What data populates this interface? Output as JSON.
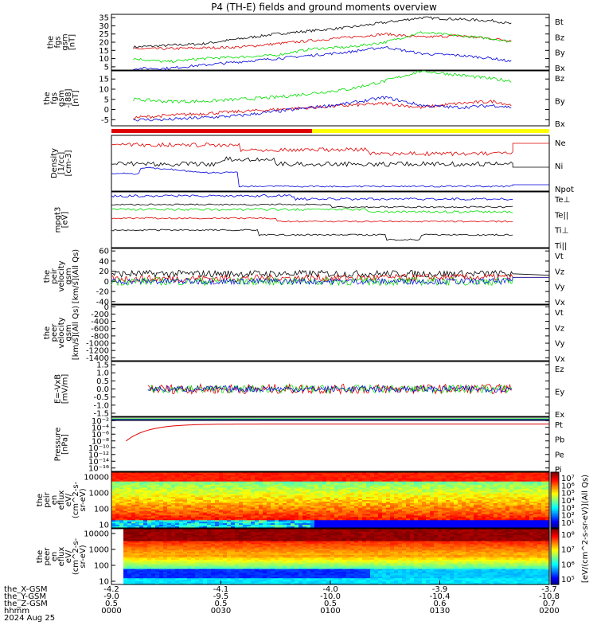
{
  "title": "P4 (TH-E) fields and ground moments overview",
  "colors": {
    "black": "#000000",
    "red": "#e00000",
    "green": "#00dd00",
    "blue": "#0000dd",
    "yellow": "#ffff00"
  },
  "panels": [
    {
      "ylabel": [
        "the",
        "fgs",
        "gsm",
        "[nT]"
      ],
      "ticks": [
        "35",
        "30",
        "25",
        "20",
        "15",
        "10",
        "5"
      ],
      "tickvals": [
        35,
        30,
        25,
        20,
        15,
        10,
        5
      ],
      "ylim": [
        3,
        37
      ],
      "legend": [
        {
          "t": "Bt",
          "c": "black"
        },
        {
          "t": "Bz",
          "c": "red"
        },
        {
          "t": "By",
          "c": "green"
        },
        {
          "t": "Bx",
          "c": "blue"
        }
      ]
    },
    {
      "ylabel": [
        "the",
        "fgs",
        "gsm",
        "-[88]",
        "[nT]"
      ],
      "ticks": [
        "15",
        "10",
        "5",
        "0",
        "-5"
      ],
      "tickvals": [
        15,
        10,
        5,
        0,
        -5
      ],
      "ylim": [
        -8,
        19
      ],
      "legend": [
        {
          "t": "Bz",
          "c": "red"
        },
        {
          "t": "By",
          "c": "green"
        },
        {
          "t": "Bx",
          "c": "blue"
        }
      ]
    },
    {
      "ylabel": [
        "Density",
        "[1/cc]",
        "[cm-3]"
      ],
      "ticks": [],
      "tickvals": [],
      "ylim": [
        0,
        1
      ],
      "legend": [
        {
          "t": "Ne",
          "c": "red"
        },
        {
          "t": "Ni",
          "c": "black"
        },
        {
          "t": "Npot",
          "c": "blue"
        }
      ]
    },
    {
      "ylabel": [
        "mpgt3",
        "[eV]"
      ],
      "ticks": [],
      "tickvals": [],
      "ylim": [
        0,
        1
      ],
      "legend": [
        {
          "t": "Te⊥",
          "c": "red"
        },
        {
          "t": "Te||",
          "c": "black"
        },
        {
          "t": "Ti⊥",
          "c": "red"
        },
        {
          "t": "Ti||",
          "c": "green"
        }
      ]
    },
    {
      "ylabel": [
        "the",
        "peir",
        "velocity",
        "gsm",
        "[km/s](All Qs)"
      ],
      "ticks": [
        "60",
        "40",
        "20",
        "0",
        "-20",
        "-40"
      ],
      "tickvals": [
        60,
        40,
        20,
        0,
        -20,
        -40
      ],
      "ylim": [
        -45,
        65
      ],
      "legend": [
        {
          "t": "Vt",
          "c": "black"
        },
        {
          "t": "Vz",
          "c": "red"
        },
        {
          "t": "Vy",
          "c": "green"
        },
        {
          "t": "Vx",
          "c": "blue"
        }
      ]
    },
    {
      "ylabel": [
        "the",
        "peer",
        "velocity",
        "gsm",
        "[km/s](All Qs)"
      ],
      "ticks": [
        "0",
        "-200",
        "-400",
        "-600",
        "-800",
        "-1000",
        "-1200",
        "-1400"
      ],
      "tickvals": [
        0,
        -200,
        -400,
        -600,
        -800,
        -1000,
        -1200,
        -1400
      ],
      "ylim": [
        -1480,
        50
      ],
      "legend": [
        {
          "t": "Vt",
          "c": "black"
        },
        {
          "t": "Vz",
          "c": "red"
        },
        {
          "t": "Vy",
          "c": "green"
        },
        {
          "t": "Vx",
          "c": "blue"
        }
      ]
    },
    {
      "ylabel": [
        "E=-VxB",
        "[mV/m]"
      ],
      "ticks": [
        "1.5",
        "1.0",
        "0.5",
        "0.0",
        "-0.5",
        "-1.0",
        "-1.5"
      ],
      "tickvals": [
        1.5,
        1.0,
        0.5,
        0.0,
        -0.5,
        -1.0,
        -1.5
      ],
      "ylim": [
        -1.7,
        1.7
      ],
      "legend": [
        {
          "t": "Ez",
          "c": "red"
        },
        {
          "t": "Ey",
          "c": "green"
        },
        {
          "t": "Ex",
          "c": "blue"
        }
      ]
    },
    {
      "ylabel": [
        "Pressure",
        "[nPa]"
      ],
      "ticks": [
        "10⁻²",
        "10⁻⁴",
        "10⁻⁶",
        "10⁻⁸",
        "10⁻¹⁰",
        "10⁻¹²",
        "10⁻¹⁴",
        "10⁻¹⁶"
      ],
      "tickvals": [
        -2,
        -4,
        -6,
        -8,
        -10,
        -12,
        -14,
        -16
      ],
      "ylim": [
        -17,
        -1
      ],
      "legend": [
        {
          "t": "Pt",
          "c": "black"
        },
        {
          "t": "Pb",
          "c": "red"
        },
        {
          "t": "Pe",
          "c": "green"
        },
        {
          "t": "Pi",
          "c": "blue"
        }
      ]
    },
    {
      "ylabel": [
        "the",
        "peir",
        "en",
        "eflux",
        "eV/",
        "(cm^2-s-",
        "sr-eV)"
      ],
      "ticks": [
        "10000",
        "1000",
        "100",
        "10"
      ],
      "tickvals": [
        4,
        3,
        2,
        1
      ],
      "ylim": [
        0.8,
        4.3
      ],
      "legend": []
    },
    {
      "ylabel": [
        "the",
        "peer",
        "en",
        "eflux",
        "eV/",
        "(cm^2-s-",
        "sr-eV)"
      ],
      "ticks": [
        "10000",
        "1000",
        "100",
        "10"
      ],
      "tickvals": [
        4,
        3,
        2,
        1
      ],
      "ylim": [
        0.8,
        4.3
      ],
      "legend": []
    }
  ],
  "colorbar1": {
    "ticks": [
      "10⁷",
      "10⁶",
      "10⁵",
      "10⁴",
      "10³",
      "10²",
      "10¹"
    ],
    "label": "[eV/(cm^2-s-sr-eV)](All Qs)"
  },
  "colorbar2": {
    "ticks": [
      "10⁸",
      "10⁷",
      "10⁶",
      "10⁵"
    ],
    "label": "[eV/(cm^2-s-sr-eV)](All Qs)"
  },
  "xaxis": {
    "row_labels": [
      "the_X-GSM",
      "the_Y-GSM",
      "the_Z-GSM",
      "hhmm",
      "2024 Aug 25"
    ],
    "ticks": [
      {
        "x": "-4.2",
        "y": "-9.0",
        "z": "0.5",
        "t": "0000"
      },
      {
        "x": "-4.1",
        "y": "-9.5",
        "z": "0.5",
        "t": "0030"
      },
      {
        "x": "-4.0",
        "y": "-10.0",
        "z": "0.5",
        "t": "0100"
      },
      {
        "x": "-3.9",
        "y": "-10.4",
        "z": "0.6",
        "t": "0130"
      },
      {
        "x": "-3.7",
        "y": "-10.8",
        "z": "0.7",
        "t": "0200"
      }
    ]
  },
  "chart_data": {
    "type": "line",
    "x_unit": "minutes since 0000 UT",
    "xlim": [
      0,
      120
    ],
    "series": [
      {
        "panel": 0,
        "name": "Bt",
        "color": "black",
        "x": [
          6,
          15,
          25,
          35,
          45,
          55,
          65,
          75,
          85,
          95,
          105,
          110
        ],
        "values": [
          17,
          18,
          19,
          22,
          25,
          27,
          29,
          32,
          35,
          34,
          33,
          31
        ]
      },
      {
        "panel": 0,
        "name": "Bz",
        "color": "red",
        "x": [
          6,
          15,
          25,
          35,
          45,
          55,
          65,
          75,
          85,
          95,
          105,
          110
        ],
        "values": [
          16,
          16,
          16.5,
          17,
          19,
          21,
          23,
          25,
          23,
          24,
          22,
          21
        ]
      },
      {
        "panel": 0,
        "name": "By",
        "color": "green",
        "x": [
          6,
          15,
          25,
          35,
          45,
          55,
          65,
          75,
          85,
          95,
          105,
          110
        ],
        "values": [
          10,
          8,
          10,
          11,
          12,
          16,
          17,
          20,
          26,
          24,
          22,
          20
        ]
      },
      {
        "panel": 0,
        "name": "Bx",
        "color": "blue",
        "x": [
          6,
          15,
          25,
          35,
          45,
          55,
          65,
          75,
          85,
          95,
          105,
          110
        ],
        "values": [
          4,
          4,
          6,
          8,
          10,
          12,
          14,
          17,
          13,
          12,
          10,
          8
        ]
      },
      {
        "panel": 1,
        "name": "Bz",
        "color": "red",
        "x": [
          6,
          15,
          25,
          35,
          45,
          55,
          65,
          75,
          85,
          95,
          105,
          110
        ],
        "values": [
          -4,
          -3,
          -2,
          -1,
          0,
          1,
          2,
          3,
          1,
          3,
          4,
          2
        ]
      },
      {
        "panel": 1,
        "name": "By",
        "color": "green",
        "x": [
          6,
          15,
          25,
          35,
          45,
          55,
          65,
          75,
          85,
          95,
          105,
          110
        ],
        "values": [
          5,
          4,
          4,
          5,
          6,
          8,
          10,
          14,
          19,
          17,
          15,
          14
        ]
      },
      {
        "panel": 1,
        "name": "Bx",
        "color": "blue",
        "x": [
          6,
          15,
          25,
          35,
          45,
          55,
          65,
          75,
          85,
          95,
          105,
          110
        ],
        "values": [
          -5,
          -5,
          -4,
          -3,
          -1,
          1,
          3,
          6,
          2,
          1,
          2,
          1
        ]
      },
      {
        "panel": 4,
        "name": "Vt",
        "color": "black",
        "x": [
          0,
          110,
          120
        ],
        "values": [
          15,
          15,
          12
        ]
      },
      {
        "panel": 4,
        "name": "Vz",
        "color": "red",
        "x": [
          0,
          110,
          120
        ],
        "values": [
          5,
          8,
          8
        ]
      },
      {
        "panel": 6,
        "name": "Ez",
        "color": "red",
        "x": [
          10,
          110
        ],
        "values": [
          0,
          0
        ]
      }
    ]
  }
}
